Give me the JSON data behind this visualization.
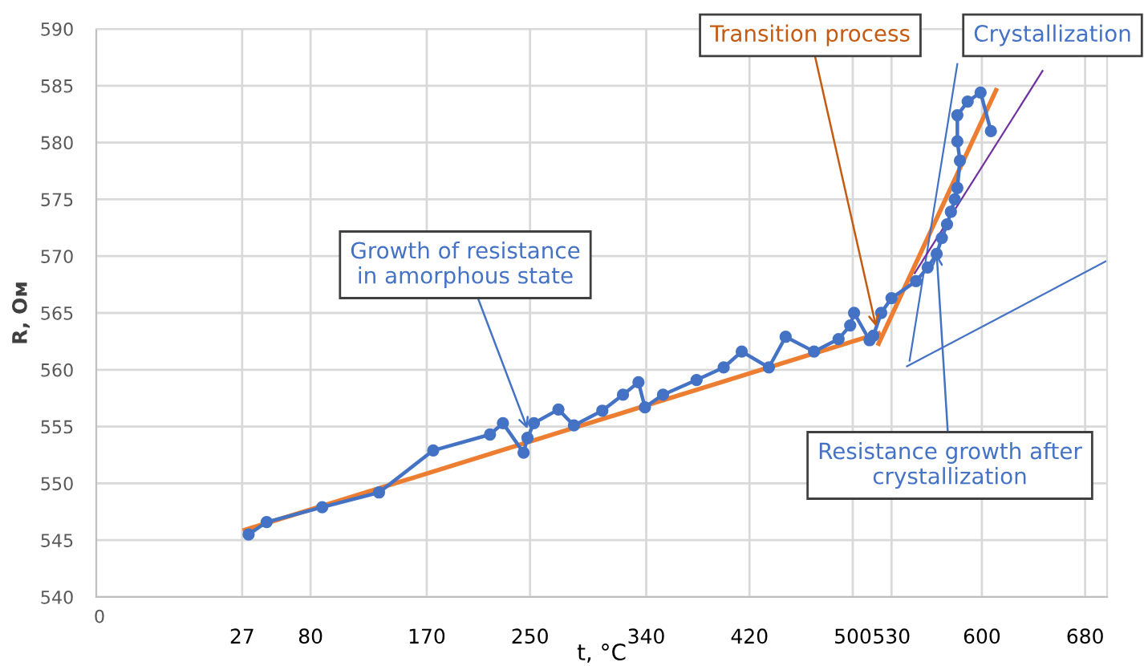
{
  "chart_data": {
    "type": "line",
    "xlabel": "t, °C",
    "ylabel": "R, Ом",
    "xlim": [
      -86,
      697
    ],
    "ylim": [
      540,
      590
    ],
    "xticks": [
      27,
      80,
      170,
      250,
      340,
      420,
      500,
      530,
      600,
      680
    ],
    "yticks": [
      540,
      545,
      550,
      555,
      560,
      565,
      570,
      575,
      580,
      585,
      590
    ],
    "grid": true,
    "series": [
      {
        "color": "#4472c4",
        "marker": "circle",
        "x": [
          32,
          46,
          89,
          133,
          175,
          219,
          229,
          245,
          248,
          253,
          272,
          284,
          306,
          322,
          334,
          339,
          353,
          379,
          400,
          414,
          435,
          448,
          470,
          489,
          498,
          501,
          513,
          516,
          522,
          530,
          549,
          558,
          565,
          569,
          573,
          576,
          579,
          581,
          583,
          581,
          581,
          589,
          599,
          607
        ],
        "values": [
          545.5,
          546.6,
          547.9,
          549.2,
          552.9,
          554.3,
          555.3,
          552.7,
          554.0,
          555.3,
          556.5,
          555.1,
          556.4,
          557.8,
          558.9,
          556.7,
          557.8,
          559.1,
          560.2,
          561.6,
          560.2,
          562.9,
          561.6,
          562.7,
          563.9,
          565.0,
          562.6,
          563.0,
          565.0,
          566.3,
          567.8,
          569.0,
          570.2,
          571.6,
          572.8,
          573.9,
          575.0,
          576.0,
          578.4,
          580.1,
          582.4,
          583.6,
          584.4,
          581.0
        ]
      },
      {
        "color": "#ed7d31",
        "marker": "none",
        "x": [
          29,
          520
        ],
        "values": [
          545.9,
          563.2
        ]
      },
      {
        "color": "#ed7d31",
        "marker": "none",
        "x": [
          520,
          611
        ],
        "values": [
          562.3,
          584.6
        ]
      },
      {
        "color": "#4472c4",
        "marker": "none",
        "x": [
          542,
          697
        ],
        "values": [
          560.3,
          569.6
        ]
      },
      {
        "color": "#4472c4",
        "marker": "none",
        "x": [
          544,
          581
        ],
        "values": [
          560.8,
          586.9
        ]
      },
      {
        "color": "#7030a0",
        "marker": "none",
        "x": [
          548,
          647
        ],
        "values": [
          568.5,
          586.3
        ]
      }
    ],
    "annotations": [
      {
        "text": "Growth of resistance\nin amorphous state",
        "x": 248,
        "y": 554.8
      },
      {
        "text": "Transition process",
        "x": 518,
        "y": 563.8
      },
      "Crystallization",
      {
        "text": "Resistance growth after\ncrystallization",
        "x": 565,
        "y": 570.2
      },
      "0"
    ]
  }
}
